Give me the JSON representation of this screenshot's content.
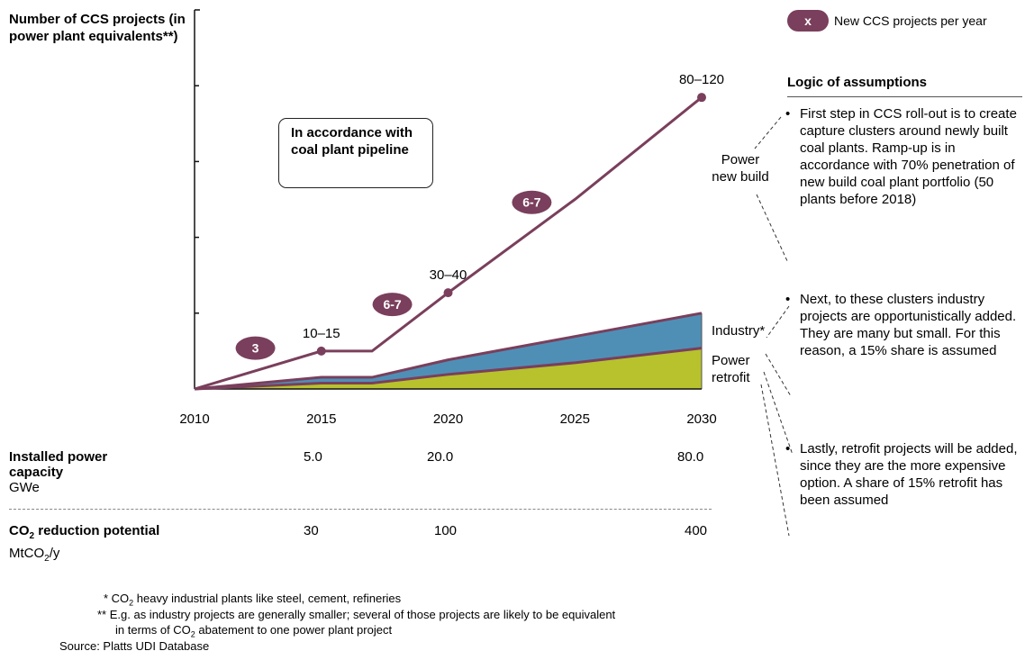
{
  "y_axis_title": "Number of CCS projects (in power plant equivalents**)",
  "legend": {
    "badge": "x",
    "label": "New CCS projects per year"
  },
  "pipeline_note": "In accordance with coal plant pipeline",
  "chart_data": {
    "type": "area",
    "title": "",
    "x_ticks": [
      "2010",
      "2015",
      "2020",
      "2025",
      "2030"
    ],
    "xlim": [
      2010,
      2030
    ],
    "ylim": [
      0,
      130
    ],
    "grid": false,
    "series": [
      {
        "name": "Power new build",
        "style": "line",
        "color": "#7a3f5c",
        "x": [
          2010,
          2015,
          2017,
          2020,
          2025,
          2030
        ],
        "y": [
          0,
          13,
          13,
          33,
          65,
          100
        ]
      },
      {
        "name": "Industry*",
        "style": "area",
        "color": "#4f8fb6",
        "x": [
          2010,
          2015,
          2017,
          2020,
          2025,
          2030
        ],
        "y": [
          0,
          4,
          4,
          10,
          18,
          26
        ]
      },
      {
        "name": "Power retrofit",
        "style": "area",
        "color": "#b7c22c",
        "x": [
          2010,
          2015,
          2017,
          2020,
          2025,
          2030
        ],
        "y": [
          0,
          2,
          2,
          5,
          9,
          14
        ]
      }
    ],
    "point_labels": [
      {
        "x": 2015,
        "y": 13,
        "text": "10–15"
      },
      {
        "x": 2020,
        "y": 33,
        "text": "30–40"
      },
      {
        "x": 2030,
        "y": 100,
        "text": "80–120"
      }
    ],
    "badges": [
      {
        "text": "3",
        "x": 2012.4,
        "y": 14
      },
      {
        "text": "6-7",
        "x": 2017.8,
        "y": 29
      },
      {
        "text": "6-7",
        "x": 2023.3,
        "y": 64
      }
    ]
  },
  "series_labels": {
    "power_new_build": "Power new build",
    "industry": "Industry*",
    "power_retrofit": "Power retrofit"
  },
  "logic": {
    "title": "Logic of assumptions",
    "bullets": [
      "First step in CCS roll-out is to create capture clusters around newly built coal plants. Ramp-up is in accordance with 70% penetration of new build coal plant portfolio (50 plants before 2018)",
      "Next, to these clusters industry projects are opportunistically added. They are many but small. For this reason, a 15% share is assumed",
      "Lastly, retrofit projects will be added, since they are the more expensive option. A share of 15% retrofit has been assumed"
    ]
  },
  "rows": {
    "capacity": {
      "label_bold": "Installed power capacity",
      "unit": "GWe",
      "v2015": "5.0",
      "v2020": "20.0",
      "v2030": "80.0"
    },
    "reduction": {
      "label_bold_1": "CO",
      "label_bold_sub": "2",
      "label_bold_2": " reduction potential",
      "unit_1": "MtCO",
      "unit_sub": "2",
      "unit_2": "/y",
      "v2015": "30",
      "v2020": "100",
      "v2030": "400"
    }
  },
  "footnotes": {
    "f1_pre": "* CO",
    "f1_sub": "2",
    "f1_post": " heavy industrial plants like steel, cement, refineries",
    "f2_line1": "** E.g. as industry projects are generally smaller; several of those projects are likely to be equivalent",
    "f2_line2_pre": "in terms of CO",
    "f2_line2_sub": "2",
    "f2_line2_post": " abatement to one power plant project",
    "source": "Source: Platts UDI Database"
  }
}
